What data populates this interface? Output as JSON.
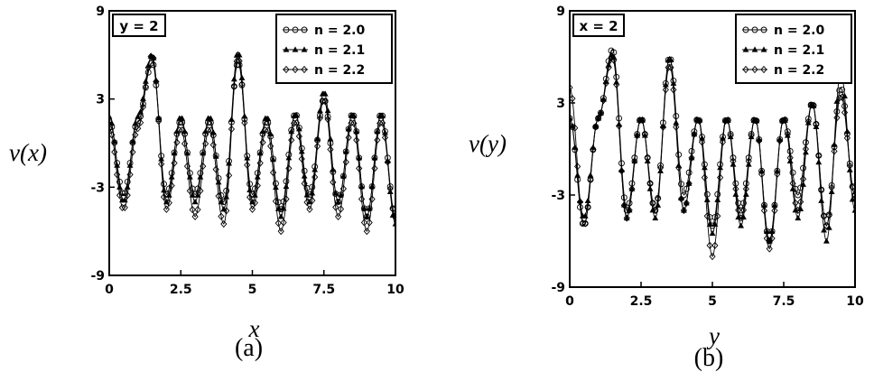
{
  "chart_data": [
    {
      "type": "line",
      "panel_label": "(a)",
      "tag": "y = 2",
      "xlabel_var": "x",
      "ylabel_var": "v(x)",
      "xlim": [
        0,
        10
      ],
      "ylim": [
        -9,
        9
      ],
      "xticks": [
        "0",
        "2.5",
        "5",
        "7.5",
        "10"
      ],
      "yticks": [
        "9",
        "3",
        "-3",
        "-9"
      ],
      "legend_position": "top-right",
      "series": [
        {
          "name": "n = 2.0",
          "marker": "circle"
        },
        {
          "name": "n = 2.1",
          "marker": "triangle"
        },
        {
          "name": "n = 2.2",
          "marker": "diamond"
        }
      ],
      "x": [
        0,
        0.5,
        1,
        1.5,
        2,
        2.5,
        3,
        3.5,
        4,
        4.5,
        5,
        5.5,
        6,
        6.5,
        7,
        7.5,
        8,
        8.5,
        9,
        9.5,
        10
      ],
      "series_values": [
        [
          1.5,
          -3.5,
          1.5,
          5.5,
          -3.5,
          1.5,
          -3.5,
          1.5,
          -4,
          5.5,
          -3.5,
          1.5,
          -4.5,
          2,
          -3.5,
          3,
          -4,
          2,
          -5,
          2,
          -5
        ],
        [
          1.8,
          -4,
          1.8,
          6,
          -4,
          1.8,
          -4,
          1.8,
          -4.5,
          6.2,
          -4,
          1.8,
          -5,
          2,
          -4,
          3.5,
          -4,
          2,
          -5,
          2,
          -5.5
        ],
        [
          1,
          -4.5,
          1,
          6,
          -4.5,
          1,
          -5,
          1,
          -5.5,
          5.8,
          -4.5,
          1,
          -6,
          1.5,
          -4.5,
          3,
          -5,
          1.5,
          -6,
          1.5,
          -5
        ]
      ]
    },
    {
      "type": "line",
      "panel_label": "(b)",
      "tag": "x = 2",
      "xlabel_var": "y",
      "ylabel_var": "v(y)",
      "xlim": [
        0,
        10
      ],
      "ylim": [
        -9,
        9
      ],
      "xticks": [
        "0",
        "2.5",
        "5",
        "7.5",
        "10"
      ],
      "yticks": [
        "9",
        "3",
        "-3",
        "-9"
      ],
      "legend_position": "top-right",
      "series": [
        {
          "name": "n = 2.0",
          "marker": "circle"
        },
        {
          "name": "n = 2.1",
          "marker": "triangle"
        },
        {
          "name": "n = 2.2",
          "marker": "diamond"
        }
      ],
      "x": [
        0,
        0.5,
        1,
        1.5,
        2,
        2.5,
        3,
        3.5,
        4,
        4.5,
        5,
        5.5,
        6,
        6.5,
        7,
        7.5,
        8,
        8.5,
        9,
        9.5,
        10
      ],
      "series_values": [
        [
          2,
          -5,
          2,
          6.5,
          -4,
          2,
          -4,
          6,
          -3,
          2,
          -5,
          2,
          -4,
          2,
          -6,
          2,
          -3,
          3,
          -5,
          4,
          -3
        ],
        [
          2,
          -4.5,
          2,
          6.2,
          -4.5,
          2,
          -4.5,
          6,
          -4,
          2,
          -5.5,
          2,
          -5,
          2,
          -6,
          2,
          -4.5,
          3,
          -6,
          5,
          -4
        ],
        [
          4,
          -5,
          2,
          6,
          -4.5,
          2,
          -4,
          5.5,
          -4,
          2,
          -7,
          2,
          -4.5,
          2,
          -6.5,
          2,
          -4,
          3,
          -5,
          3.5,
          -3
        ]
      ]
    }
  ]
}
